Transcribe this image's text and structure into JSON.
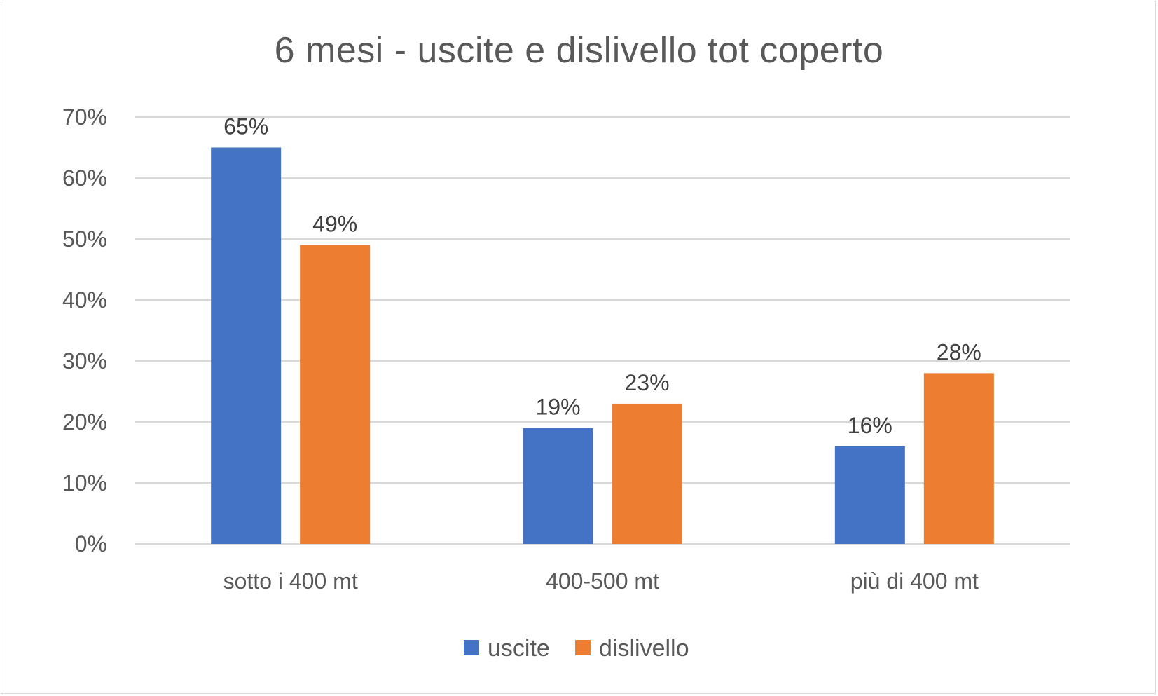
{
  "chart_data": {
    "type": "bar",
    "title": "6 mesi - uscite e dislivello tot coperto",
    "categories": [
      "sotto i 400 mt",
      "400-500 mt",
      "più di 400 mt"
    ],
    "series": [
      {
        "name": "uscite",
        "values": [
          65,
          19,
          16
        ],
        "color": "#4472c4",
        "labels": [
          "65%",
          "19%",
          "16%"
        ]
      },
      {
        "name": "dislivello",
        "values": [
          49,
          23,
          28
        ],
        "color": "#ed7d31",
        "labels": [
          "49%",
          "23%",
          "28%"
        ]
      }
    ],
    "ylim": [
      0,
      70
    ],
    "yticks": [
      0,
      10,
      20,
      30,
      40,
      50,
      60,
      70
    ],
    "ytick_labels": [
      "0%",
      "10%",
      "20%",
      "30%",
      "40%",
      "50%",
      "60%",
      "70%"
    ],
    "xlabel": "",
    "ylabel": "",
    "grid": true,
    "legend_position": "bottom"
  }
}
